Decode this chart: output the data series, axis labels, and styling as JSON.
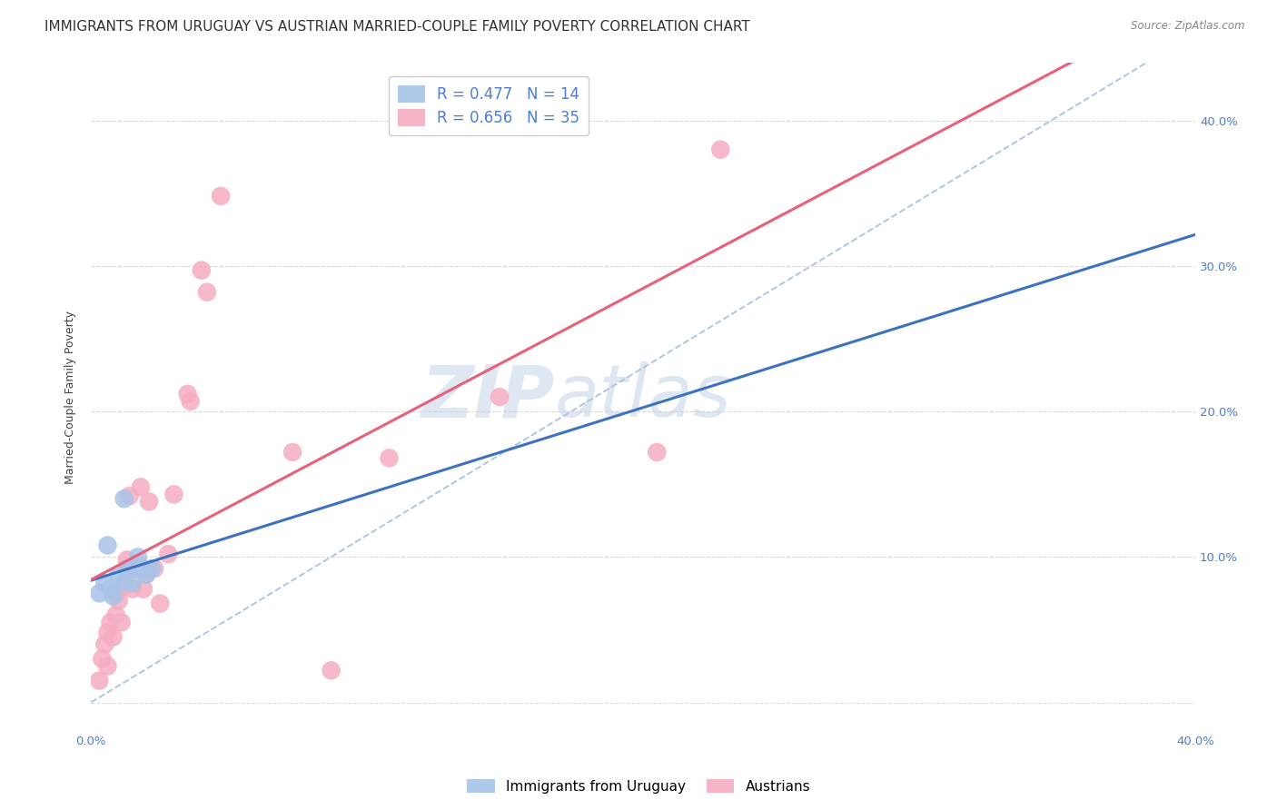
{
  "title": "IMMIGRANTS FROM URUGUAY VS AUSTRIAN MARRIED-COUPLE FAMILY POVERTY CORRELATION CHART",
  "source": "Source: ZipAtlas.com",
  "ylabel": "Married-Couple Family Poverty",
  "xlim": [
    0.0,
    0.4
  ],
  "ylim": [
    -0.02,
    0.44
  ],
  "yticks": [
    0.0,
    0.1,
    0.2,
    0.3,
    0.4
  ],
  "xticks": [
    0.0,
    0.1,
    0.2,
    0.3,
    0.4
  ],
  "right_ytick_labels": [
    "",
    "10.0%",
    "20.0%",
    "30.0%",
    "40.0%"
  ],
  "xtick_labels": [
    "0.0%",
    "",
    "",
    "",
    "40.0%"
  ],
  "legend1_label": "R = 0.477   N = 14",
  "legend2_label": "R = 0.656   N = 35",
  "watermark_zip": "ZIP",
  "watermark_atlas": "atlas",
  "uruguay_color": "#a8c4e8",
  "austrian_color": "#f5adc0",
  "uruguay_line_color": "#3d72c0",
  "austrian_line_color": "#e8607a",
  "dashed_line_color": "#a8c0dc",
  "background_color": "#ffffff",
  "grid_color": "#cccccc",
  "axis_tick_color": "#4a7fd4",
  "title_color": "#333333",
  "title_fontsize": 11,
  "label_fontsize": 9,
  "tick_fontsize": 9.5,
  "uruguay_points": [
    [
      0.003,
      0.075
    ],
    [
      0.005,
      0.082
    ],
    [
      0.007,
      0.078
    ],
    [
      0.008,
      0.073
    ],
    [
      0.01,
      0.088
    ],
    [
      0.012,
      0.083
    ],
    [
      0.013,
      0.092
    ],
    [
      0.015,
      0.082
    ],
    [
      0.017,
      0.1
    ],
    [
      0.018,
      0.093
    ],
    [
      0.02,
      0.088
    ],
    [
      0.022,
      0.092
    ],
    [
      0.012,
      0.14
    ],
    [
      0.006,
      0.108
    ]
  ],
  "austrian_points": [
    [
      0.003,
      0.015
    ],
    [
      0.004,
      0.03
    ],
    [
      0.005,
      0.04
    ],
    [
      0.006,
      0.048
    ],
    [
      0.006,
      0.025
    ],
    [
      0.007,
      0.055
    ],
    [
      0.008,
      0.045
    ],
    [
      0.009,
      0.075
    ],
    [
      0.009,
      0.06
    ],
    [
      0.01,
      0.07
    ],
    [
      0.011,
      0.055
    ],
    [
      0.012,
      0.08
    ],
    [
      0.013,
      0.098
    ],
    [
      0.014,
      0.142
    ],
    [
      0.015,
      0.078
    ],
    [
      0.016,
      0.092
    ],
    [
      0.018,
      0.148
    ],
    [
      0.019,
      0.078
    ],
    [
      0.02,
      0.088
    ],
    [
      0.021,
      0.138
    ],
    [
      0.023,
      0.092
    ],
    [
      0.025,
      0.068
    ],
    [
      0.028,
      0.102
    ],
    [
      0.03,
      0.143
    ],
    [
      0.035,
      0.212
    ],
    [
      0.036,
      0.207
    ],
    [
      0.04,
      0.297
    ],
    [
      0.042,
      0.282
    ],
    [
      0.047,
      0.348
    ],
    [
      0.073,
      0.172
    ],
    [
      0.087,
      0.022
    ],
    [
      0.108,
      0.168
    ],
    [
      0.148,
      0.21
    ],
    [
      0.205,
      0.172
    ],
    [
      0.228,
      0.38
    ]
  ]
}
